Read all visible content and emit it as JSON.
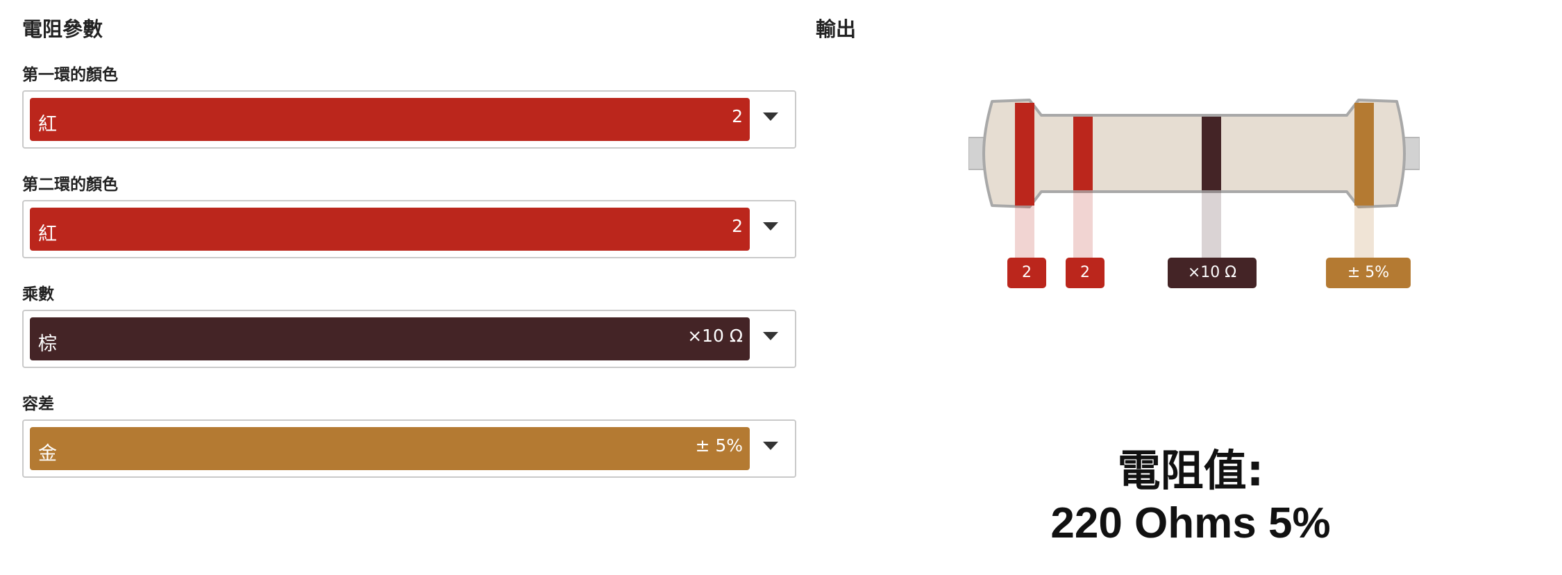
{
  "params": {
    "title": "電阻參數",
    "fields": [
      {
        "label": "第一環的顏色",
        "color_name": "紅",
        "code": "2",
        "color": "#bb261c"
      },
      {
        "label": "第二環的顏色",
        "color_name": "紅",
        "code": "2",
        "color": "#bb261c"
      },
      {
        "label": "乘數",
        "color_name": "棕",
        "code": "×10 Ω",
        "color": "#442426"
      },
      {
        "label": "容差",
        "color_name": "金",
        "code": "± 5%",
        "color": "#b47a32"
      }
    ]
  },
  "output": {
    "title": "輸出",
    "band_labels": [
      "2",
      "2",
      "×10 Ω",
      "± 5%"
    ],
    "colors": {
      "body": "#e6ddd2",
      "outline": "#a8a8a8",
      "lead": "#d2d2d2",
      "band1": "#bb261c",
      "band2": "#bb261c",
      "band3": "#442426",
      "band4": "#b47a32"
    },
    "result_label": "電阻值:",
    "result_value": "220 Ohms 5%"
  }
}
